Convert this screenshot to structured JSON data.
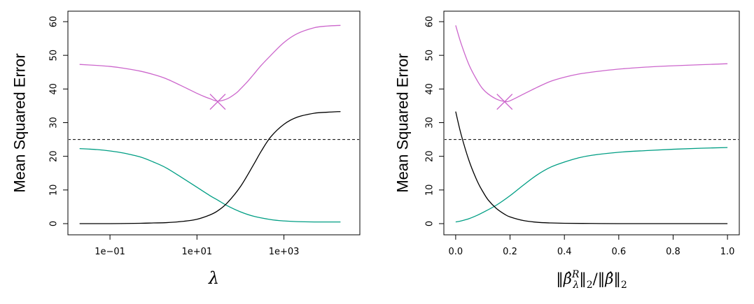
{
  "chart_data": [
    {
      "type": "line",
      "xlabel": "λ",
      "ylabel": "Mean Squared Error",
      "x_scale": "log",
      "xlim": [
        0.02,
        30000
      ],
      "ylim": [
        0,
        60
      ],
      "x_ticks": [
        {
          "value": 0.1,
          "label": "1e−01"
        },
        {
          "value": 10,
          "label": "1e+01"
        },
        {
          "value": 1000,
          "label": "1e+03"
        }
      ],
      "y_ticks": [
        0,
        10,
        20,
        30,
        40,
        50,
        60
      ],
      "grid": false,
      "reference_line": {
        "y": 25,
        "style": "dashed",
        "color": "#000000"
      },
      "minimum_marker": {
        "x": 30,
        "y": 36.2,
        "shape": "cross",
        "color": "#CC66CC"
      },
      "series": [
        {
          "color": "#CC66CC",
          "x": [
            0.02,
            0.05,
            0.1,
            0.2,
            0.5,
            1,
            2,
            5,
            10,
            15,
            20,
            30,
            50,
            80,
            100,
            150,
            200,
            300,
            500,
            1000,
            2000,
            5000,
            10000,
            20000
          ],
          "y": [
            47.3,
            47.0,
            46.7,
            46.2,
            45.3,
            44.3,
            43.0,
            40.6,
            38.7,
            37.7,
            37.1,
            36.4,
            37.1,
            38.8,
            40.0,
            42.4,
            44.3,
            47.0,
            50.0,
            53.8,
            56.4,
            58.2,
            58.7,
            58.9
          ]
        },
        {
          "color": "#009E84",
          "x": [
            0.02,
            0.05,
            0.1,
            0.2,
            0.5,
            1,
            2,
            5,
            10,
            20,
            30,
            50,
            100,
            200,
            500,
            1000,
            2000,
            5000,
            10000,
            20000
          ],
          "y": [
            22.3,
            22.0,
            21.6,
            21.0,
            19.8,
            18.3,
            16.5,
            13.3,
            10.8,
            8.3,
            7.0,
            5.3,
            3.5,
            2.2,
            1.2,
            0.8,
            0.6,
            0.5,
            0.5,
            0.5
          ]
        },
        {
          "color": "#000000",
          "x": [
            0.02,
            0.1,
            0.5,
            1,
            2,
            5,
            10,
            20,
            30,
            50,
            100,
            200,
            300,
            500,
            1000,
            2000,
            5000,
            10000,
            20000
          ],
          "y": [
            0,
            0,
            0.1,
            0.2,
            0.3,
            0.7,
            1.3,
            2.6,
            3.8,
            6.2,
            11.0,
            17.5,
            21.5,
            25.8,
            29.5,
            31.6,
            32.8,
            33.1,
            33.3
          ]
        }
      ]
    },
    {
      "type": "line",
      "xlabel": "‖β̂λR‖2/‖β̂‖2",
      "ylabel": "Mean Squared Error",
      "xlim": [
        0,
        1
      ],
      "ylim": [
        0,
        60
      ],
      "x_ticks": [
        {
          "value": 0.0,
          "label": "0.0"
        },
        {
          "value": 0.2,
          "label": "0.2"
        },
        {
          "value": 0.4,
          "label": "0.4"
        },
        {
          "value": 0.6,
          "label": "0.6"
        },
        {
          "value": 0.8,
          "label": "0.8"
        },
        {
          "value": 1.0,
          "label": "1.0"
        }
      ],
      "y_ticks": [
        0,
        10,
        20,
        30,
        40,
        50,
        60
      ],
      "grid": false,
      "reference_line": {
        "y": 25,
        "style": "dashed",
        "color": "#000000"
      },
      "minimum_marker": {
        "x": 0.18,
        "y": 36.2,
        "shape": "cross",
        "color": "#CC66CC"
      },
      "series": [
        {
          "color": "#CC66CC",
          "x": [
            0.0,
            0.02,
            0.05,
            0.08,
            0.1,
            0.12,
            0.15,
            0.18,
            0.2,
            0.25,
            0.3,
            0.35,
            0.4,
            0.45,
            0.5,
            0.6,
            0.7,
            0.8,
            0.9,
            1.0
          ],
          "y": [
            58.9,
            53.5,
            47.0,
            42.4,
            40.0,
            38.5,
            37.0,
            36.3,
            36.5,
            38.5,
            40.5,
            42.3,
            43.5,
            44.4,
            45.0,
            45.9,
            46.5,
            46.9,
            47.2,
            47.5
          ]
        },
        {
          "color": "#009E84",
          "x": [
            0.0,
            0.02,
            0.05,
            0.08,
            0.1,
            0.15,
            0.2,
            0.25,
            0.3,
            0.35,
            0.4,
            0.45,
            0.5,
            0.6,
            0.7,
            0.8,
            0.9,
            1.0
          ],
          "y": [
            0.5,
            0.8,
            1.5,
            2.5,
            3.3,
            5.5,
            8.3,
            11.5,
            14.5,
            16.8,
            18.3,
            19.5,
            20.3,
            21.2,
            21.7,
            22.1,
            22.4,
            22.6
          ]
        },
        {
          "color": "#000000",
          "x": [
            0.0,
            0.02,
            0.05,
            0.08,
            0.1,
            0.12,
            0.15,
            0.18,
            0.2,
            0.25,
            0.3,
            0.35,
            0.4,
            0.5,
            0.6,
            0.8,
            1.0
          ],
          "y": [
            33.3,
            26.5,
            18.5,
            12.5,
            9.5,
            7.0,
            4.5,
            2.8,
            2.0,
            0.9,
            0.4,
            0.2,
            0.1,
            0.05,
            0,
            0,
            0
          ]
        }
      ]
    }
  ]
}
